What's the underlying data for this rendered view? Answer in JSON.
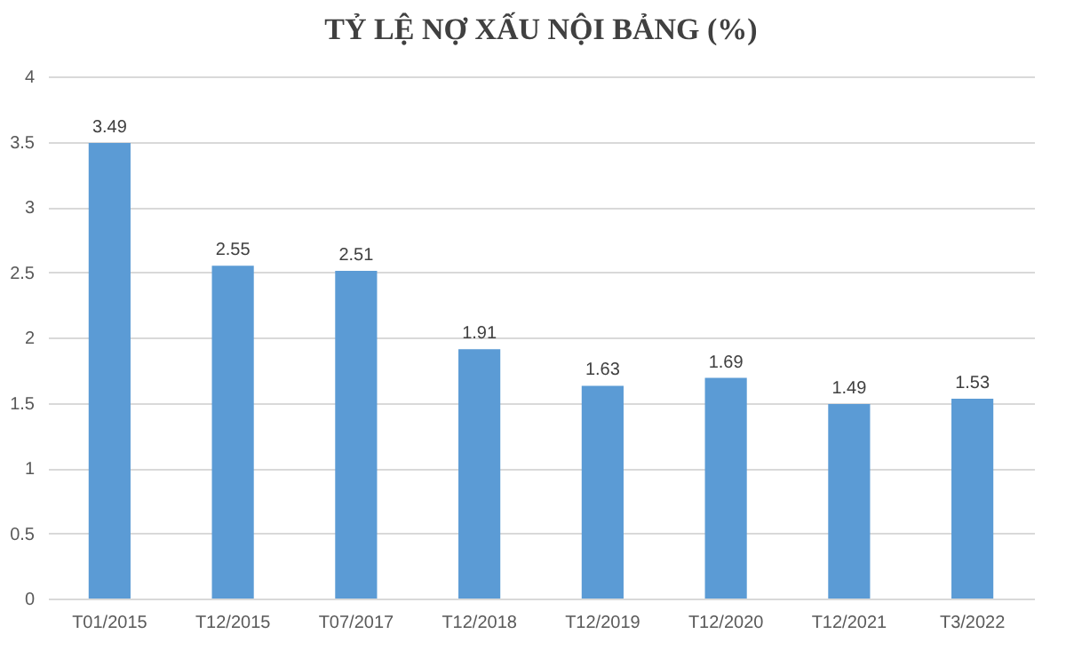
{
  "chart_data": {
    "type": "bar",
    "title": "TỶ LỆ NỢ XẤU NỘI BẢNG (%)",
    "categories": [
      "T01/2015",
      "T12/2015",
      "T07/2017",
      "T12/2018",
      "T12/2019",
      "T12/2020",
      "T12/2021",
      "T3/2022"
    ],
    "values": [
      3.49,
      2.55,
      2.51,
      1.91,
      1.63,
      1.69,
      1.49,
      1.53
    ],
    "color": "#5b9bd5",
    "ylim": [
      0,
      4
    ],
    "yticks": [
      0,
      0.5,
      1,
      1.5,
      2,
      2.5,
      3,
      3.5,
      4
    ],
    "grid": "y",
    "data_labels": true
  }
}
